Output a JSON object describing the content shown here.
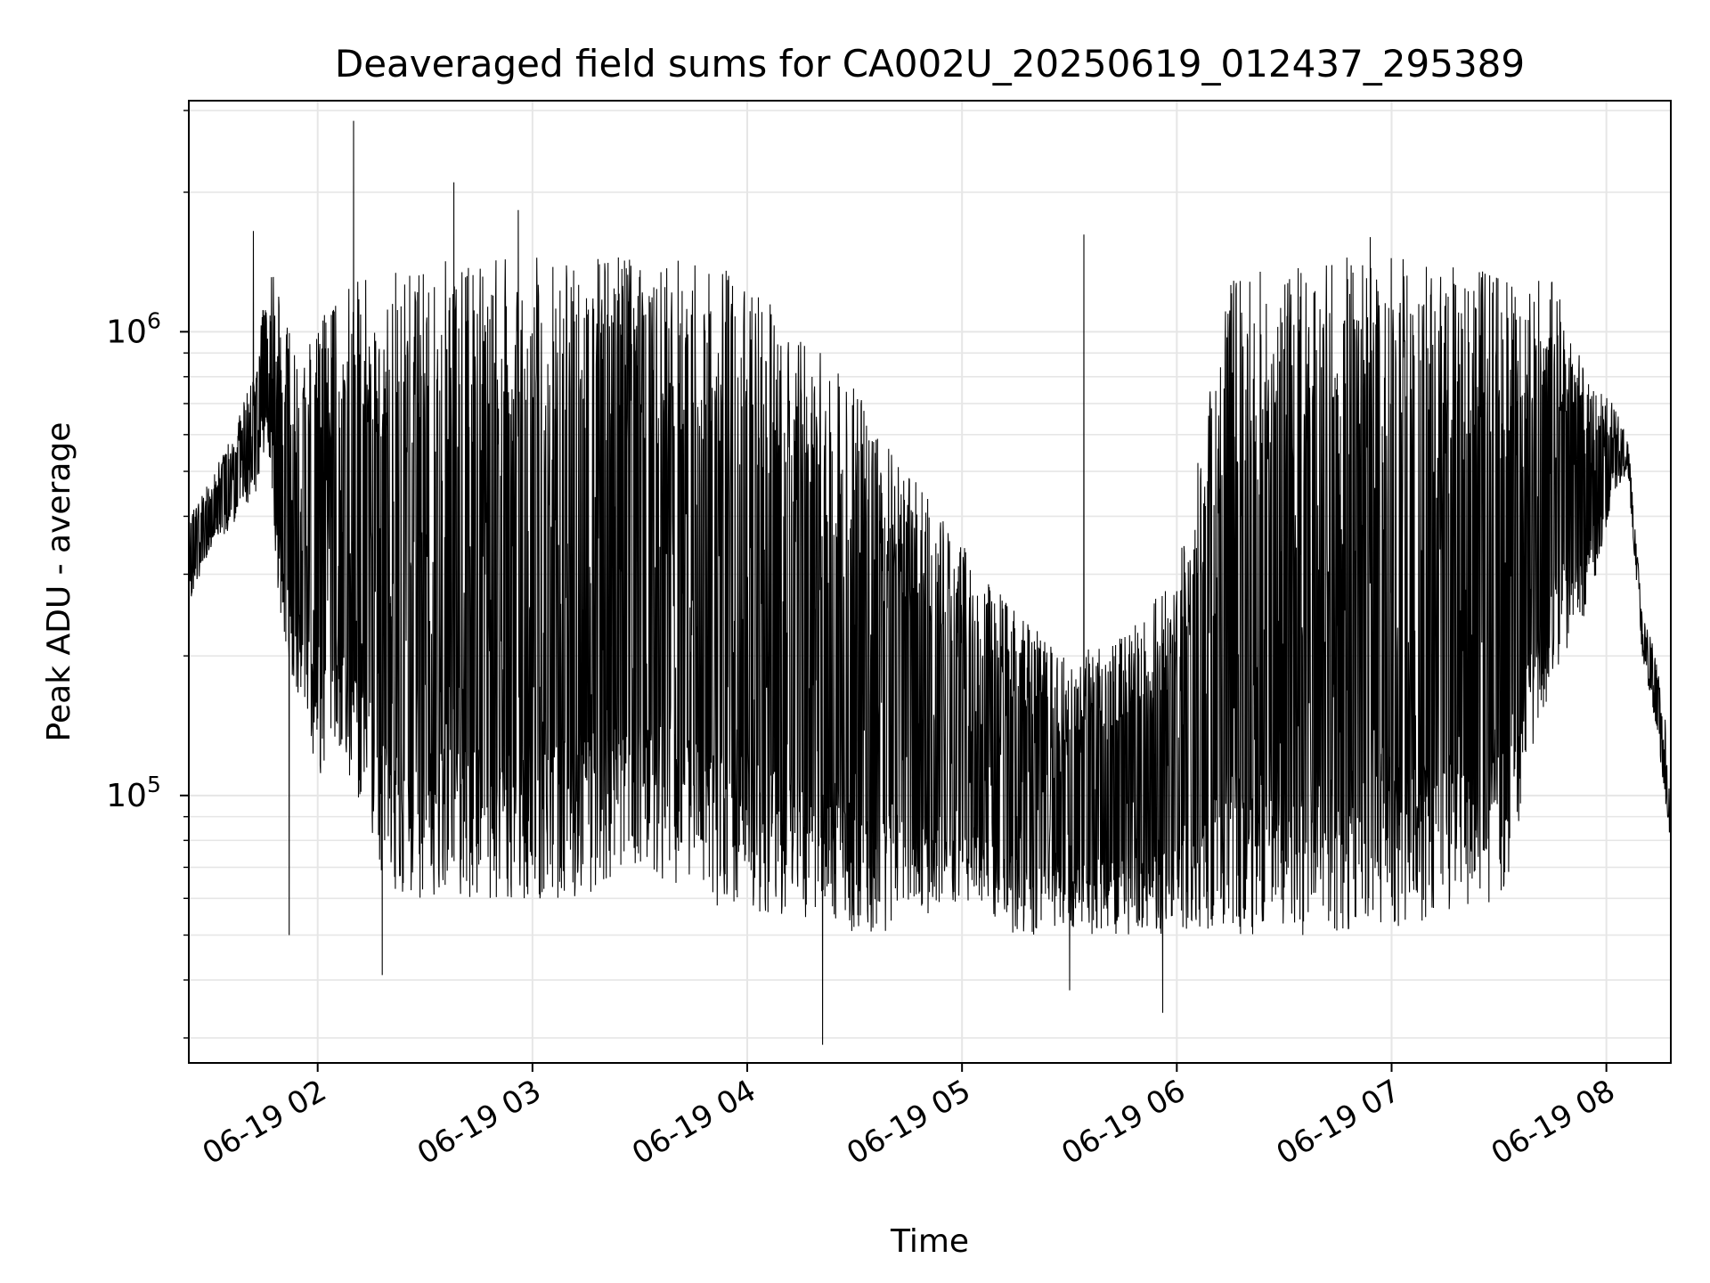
{
  "chart_data": {
    "type": "line",
    "title": "Deaveraged field sums for CA002U_20250619_012437_295389",
    "xlabel": "Time",
    "ylabel": "Peak ADU - average",
    "y_scale": "log",
    "grid": true,
    "legend": "none",
    "line_color": "#000000",
    "grid_color": "#e6e6e6",
    "xlim": [
      "06-19 01:24",
      "06-19 08:18"
    ],
    "ylim": [
      26500,
      3150000
    ],
    "x_ticks": [
      "06-19 02",
      "06-19 03",
      "06-19 04",
      "06-19 05",
      "06-19 06",
      "06-19 07",
      "06-19 08"
    ],
    "y_ticks": [
      100000,
      1000000
    ],
    "y_tick_labels": [
      {
        "base": "10",
        "exp": "5"
      },
      {
        "base": "10",
        "exp": "6"
      }
    ],
    "series": [
      {
        "x": [
          "06-19 01:24",
          "06-19 01:30",
          "06-19 01:36",
          "06-19 01:42",
          "06-19 01:46",
          "06-19 01:50",
          "06-19 01:54",
          "06-19 02:00",
          "06-19 02:06",
          "06-19 02:10",
          "06-19 02:15",
          "06-19 02:20",
          "06-19 02:30",
          "06-19 02:45",
          "06-19 03:00",
          "06-19 03:15",
          "06-19 03:30",
          "06-19 03:45",
          "06-19 04:00",
          "06-19 04:15",
          "06-19 04:30",
          "06-19 04:45",
          "06-19 05:00",
          "06-19 05:15",
          "06-19 05:30",
          "06-19 05:45",
          "06-19 06:00",
          "06-19 06:15",
          "06-19 06:30",
          "06-19 06:45",
          "06-19 07:00",
          "06-19 07:15",
          "06-19 07:30",
          "06-19 07:45",
          "06-19 07:55",
          "06-19 08:02",
          "06-19 08:06",
          "06-19 08:10",
          "06-19 08:14",
          "06-19 08:18"
        ],
        "low": [
          260000,
          340000,
          380000,
          420000,
          600000,
          200000,
          170000,
          110000,
          120000,
          100000,
          80000,
          60000,
          60000,
          60000,
          60000,
          60000,
          70000,
          60000,
          55000,
          55000,
          50000,
          50000,
          60000,
          50000,
          50000,
          50000,
          50000,
          50000,
          50000,
          50000,
          50000,
          55000,
          55000,
          180000,
          250000,
          450000,
          500000,
          200000,
          140000,
          78000
        ],
        "high": [
          400000,
          480000,
          600000,
          800000,
          1400000,
          1200000,
          900000,
          1100000,
          1200000,
          1300000,
          1300000,
          1350000,
          1400000,
          1450000,
          1450000,
          1450000,
          1450000,
          1450000,
          1300000,
          1000000,
          750000,
          500000,
          350000,
          250000,
          200000,
          220000,
          300000,
          1300000,
          1450000,
          1450000,
          1450000,
          1400000,
          1350000,
          1300000,
          800000,
          700000,
          600000,
          250000,
          200000,
          120000
        ],
        "peaks": [
          {
            "x": "06-19 01:42",
            "y": 1650000
          },
          {
            "x": "06-19 02:10",
            "y": 2850000
          },
          {
            "x": "06-19 02:38",
            "y": 2100000
          },
          {
            "x": "06-19 02:56",
            "y": 1830000
          },
          {
            "x": "06-19 05:34",
            "y": 1620000
          },
          {
            "x": "06-19 06:54",
            "y": 1600000
          }
        ],
        "dips": [
          {
            "x": "06-19 01:52",
            "y": 50000
          },
          {
            "x": "06-19 02:18",
            "y": 41000
          },
          {
            "x": "06-19 04:21",
            "y": 29000
          },
          {
            "x": "06-19 05:30",
            "y": 38000
          },
          {
            "x": "06-19 05:56",
            "y": 34000
          }
        ]
      }
    ]
  }
}
